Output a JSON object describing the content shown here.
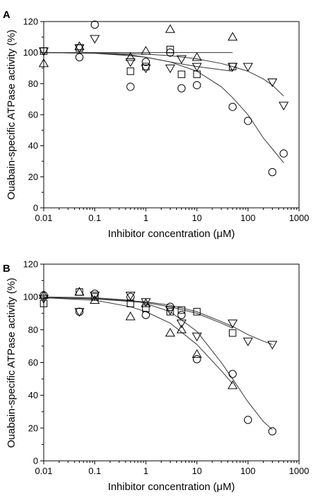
{
  "chart_data": [
    {
      "panel_label": "A",
      "type": "scatter",
      "xscale": "log",
      "xlim": [
        0.01,
        1000
      ],
      "ylim": [
        0,
        120
      ],
      "xticks": [
        0.01,
        0.1,
        1,
        10,
        100,
        1000
      ],
      "xtick_labels": [
        "0.01",
        "0.1",
        "1",
        "10",
        "100",
        "1000"
      ],
      "yticks": [
        0,
        20,
        40,
        60,
        80,
        100,
        120
      ],
      "ytick_labels": [
        "0",
        "20",
        "40",
        "60",
        "80",
        "100",
        "120"
      ],
      "xlabel": "Inhibitor concentration (μM)",
      "ylabel": "Ouabain-specific ATPase activity (%)",
      "grid": false,
      "series": [
        {
          "marker": "square",
          "x": [
            0.01,
            0.05,
            0.5,
            1,
            3,
            5,
            10,
            50
          ],
          "y": [
            101,
            103,
            88,
            91,
            102,
            86,
            86,
            91
          ]
        },
        {
          "marker": "circle",
          "x": [
            0.05,
            0.1,
            0.5,
            1,
            3,
            5,
            10,
            50,
            100,
            300,
            500
          ],
          "y": [
            97,
            118,
            78,
            94,
            100,
            77,
            79,
            65,
            56,
            23,
            35
          ]
        },
        {
          "marker": "triangle-up",
          "x": [
            0.01,
            0.05,
            0.5,
            1,
            3,
            10,
            50
          ],
          "y": [
            93,
            104,
            97,
            101,
            115,
            97,
            110
          ]
        },
        {
          "marker": "triangle-down",
          "x": [
            0.01,
            0.05,
            0.1,
            0.5,
            1,
            3,
            5,
            10,
            50,
            100,
            300,
            500
          ],
          "y": [
            101,
            103,
            109,
            94,
            90,
            90,
            96,
            91,
            91,
            91,
            81,
            66
          ]
        }
      ],
      "fit_curves": [
        {
          "for": "square",
          "x": [
            0.01,
            0.1,
            0.5,
            1,
            3,
            10,
            50
          ],
          "y": [
            100,
            99.5,
            98,
            97,
            94,
            91,
            88
          ]
        },
        {
          "for": "circle",
          "x": [
            0.01,
            0.1,
            0.5,
            1,
            3,
            10,
            30,
            50,
            100,
            200,
            300,
            500
          ],
          "y": [
            100,
            99.6,
            98.5,
            97,
            94,
            88,
            78,
            71,
            60,
            45,
            38,
            29
          ]
        },
        {
          "for": "triangle-up",
          "x": [
            0.01,
            0.1,
            1,
            10,
            50
          ],
          "y": [
            100,
            100,
            100,
            100,
            100
          ]
        },
        {
          "for": "triangle-down",
          "x": [
            0.01,
            0.1,
            1,
            3,
            10,
            30,
            50,
            100,
            200,
            300,
            500
          ],
          "y": [
            100,
            99.7,
            99,
            98,
            96,
            93,
            91,
            88,
            83,
            79,
            72
          ]
        }
      ]
    },
    {
      "panel_label": "B",
      "type": "scatter",
      "xscale": "log",
      "xlim": [
        0.01,
        1000
      ],
      "ylim": [
        0,
        120
      ],
      "xticks": [
        0.01,
        0.1,
        1,
        10,
        100,
        1000
      ],
      "xtick_labels": [
        "0.01",
        "0.1",
        "1",
        "10",
        "100",
        "1000"
      ],
      "yticks": [
        0,
        20,
        40,
        60,
        80,
        100,
        120
      ],
      "ytick_labels": [
        "0",
        "20",
        "40",
        "60",
        "80",
        "100",
        "120"
      ],
      "xlabel": "Inhibitor concentration (μM)",
      "ylabel": "Ouabain-specific ATPase activity (%)",
      "grid": false,
      "series": [
        {
          "marker": "square",
          "x": [
            0.01,
            0.05,
            0.1,
            0.5,
            1,
            3,
            5,
            10,
            50
          ],
          "y": [
            96,
            103,
            100,
            96,
            93,
            91,
            92,
            91,
            78
          ]
        },
        {
          "marker": "circle",
          "x": [
            0.01,
            0.05,
            0.1,
            0.5,
            1,
            3,
            5,
            10,
            50,
            100,
            300
          ],
          "y": [
            101,
            91,
            102,
            100,
            89,
            94,
            89,
            62,
            53,
            25,
            18
          ]
        },
        {
          "marker": "triangle-up",
          "x": [
            0.01,
            0.05,
            0.1,
            0.5,
            1,
            3,
            5,
            10,
            50
          ],
          "y": [
            101,
            103,
            98,
            88,
            96,
            78,
            80,
            65,
            46
          ]
        },
        {
          "marker": "triangle-down",
          "x": [
            0.01,
            0.05,
            0.1,
            0.5,
            1,
            3,
            5,
            10,
            50,
            100,
            300
          ],
          "y": [
            99,
            91,
            101,
            101,
            97,
            92,
            84,
            76,
            84,
            73,
            71
          ]
        }
      ],
      "fit_curves": [
        {
          "for": "square",
          "x": [
            0.01,
            0.1,
            1,
            3,
            10,
            30,
            50
          ],
          "y": [
            99.5,
            98.8,
            96.5,
            94,
            90,
            84,
            81
          ]
        },
        {
          "for": "circle",
          "x": [
            0.01,
            0.1,
            0.5,
            1,
            3,
            10,
            30,
            50,
            100,
            200,
            300
          ],
          "y": [
            100,
            99.5,
            98,
            96,
            91,
            79,
            60,
            50,
            36,
            24,
            19
          ]
        },
        {
          "for": "triangle-up",
          "x": [
            0.01,
            0.1,
            0.5,
            1,
            3,
            10,
            30,
            50
          ],
          "y": [
            99.5,
            98,
            94,
            91,
            84,
            71,
            55,
            47
          ]
        },
        {
          "for": "triangle-down",
          "x": [
            0.01,
            0.1,
            1,
            3,
            10,
            30,
            50,
            100,
            200,
            300
          ],
          "y": [
            99.6,
            99,
            97,
            95,
            91,
            85,
            82,
            77,
            73,
            71
          ]
        }
      ]
    }
  ]
}
